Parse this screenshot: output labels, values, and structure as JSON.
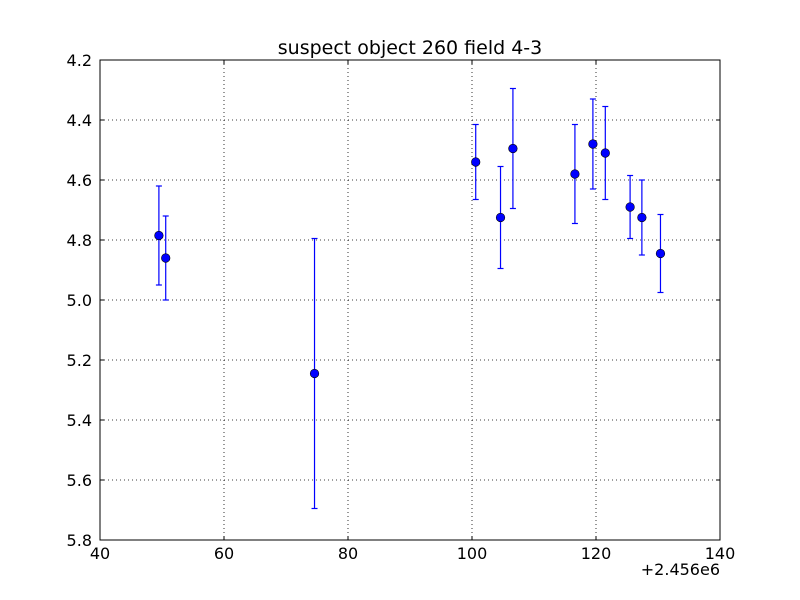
{
  "chart_data": {
    "type": "scatter",
    "title": "suspect object 260 field 4-3",
    "xlabel": "",
    "ylabel": "",
    "x_offset_label": "+2.456e6",
    "xlim": [
      40,
      140
    ],
    "ylim": [
      5.8,
      4.2
    ],
    "y_inverted": true,
    "grid": true,
    "x_ticks": [
      "40",
      "60",
      "80",
      "100",
      "120",
      "140"
    ],
    "y_ticks": [
      "4.2",
      "4.4",
      "4.6",
      "4.8",
      "5.0",
      "5.2",
      "5.4",
      "5.6",
      "5.8"
    ],
    "marker_color": "#0000ff",
    "series": [
      {
        "points": [
          {
            "x": 49.5,
            "y": 4.785,
            "err": 0.165
          },
          {
            "x": 50.6,
            "y": 4.86,
            "err": 0.14
          },
          {
            "x": 74.6,
            "y": 5.245,
            "err": 0.45
          },
          {
            "x": 100.6,
            "y": 4.54,
            "err": 0.125
          },
          {
            "x": 104.6,
            "y": 4.725,
            "err": 0.17
          },
          {
            "x": 106.6,
            "y": 4.495,
            "err": 0.2
          },
          {
            "x": 116.6,
            "y": 4.58,
            "err": 0.165
          },
          {
            "x": 119.5,
            "y": 4.48,
            "err": 0.15
          },
          {
            "x": 121.5,
            "y": 4.51,
            "err": 0.155
          },
          {
            "x": 125.5,
            "y": 4.69,
            "err": 0.105
          },
          {
            "x": 127.4,
            "y": 4.725,
            "err": 0.125
          },
          {
            "x": 130.4,
            "y": 4.845,
            "err": 0.13
          }
        ]
      }
    ]
  }
}
